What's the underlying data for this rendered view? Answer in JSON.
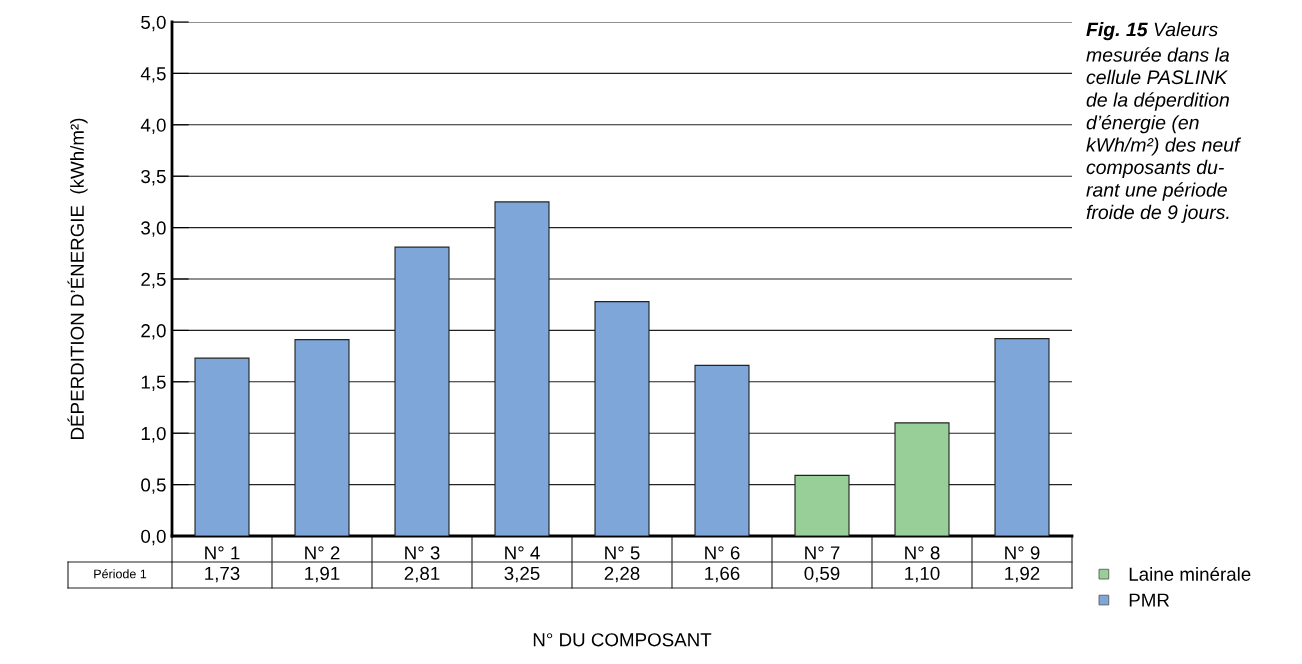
{
  "chart_data": {
    "type": "bar",
    "xlabel": "N° DU COMPOSANT",
    "ylabel": "DÉPERDITION D’ÉNERGIE  (kWh/m²)",
    "categories": [
      "N° 1",
      "N° 2",
      "N° 3",
      "N° 4",
      "N° 5",
      "N° 6",
      "N° 7",
      "N° 8",
      "N° 9"
    ],
    "series": [
      {
        "name": "Laine minérale",
        "color": "#98cf98",
        "values": [
          null,
          null,
          null,
          null,
          null,
          null,
          0.59,
          1.1,
          null
        ]
      },
      {
        "name": "PMR",
        "color": "#7ea6d9",
        "values": [
          1.73,
          1.91,
          2.81,
          3.25,
          2.28,
          1.66,
          null,
          null,
          1.92
        ]
      }
    ],
    "value_labels": [
      "1,73",
      "1,91",
      "2,81",
      "3,25",
      "2,28",
      "1,66",
      "0,59",
      "1,10",
      "1,92"
    ],
    "annotations": [
      "Période 1",
      "Fig. 15",
      "Valeurs\nmesurée dans la\ncellule PASLINK\nde la déperdition\nd’énergie (en\nkWh/m²) des neuf\ncomposants du-\nrant une période\nfroide de 9 jours."
    ],
    "ylim": [
      0,
      5
    ],
    "yticks": [
      {
        "value": 0,
        "label": "0,0"
      },
      {
        "value": 0.5,
        "label": "0,5"
      },
      {
        "value": 1,
        "label": "1,0"
      },
      {
        "value": 1.5,
        "label": "1,5"
      },
      {
        "value": 2,
        "label": "2,0"
      },
      {
        "value": 2.5,
        "label": "2,5"
      },
      {
        "value": 3,
        "label": "3,0"
      },
      {
        "value": 3.5,
        "label": "3,5"
      },
      {
        "value": 4,
        "label": "4,0"
      },
      {
        "value": 4.5,
        "label": "4,5"
      },
      {
        "value": 5,
        "label": "5,0"
      }
    ],
    "grid": "y",
    "legend": "bottom right"
  }
}
